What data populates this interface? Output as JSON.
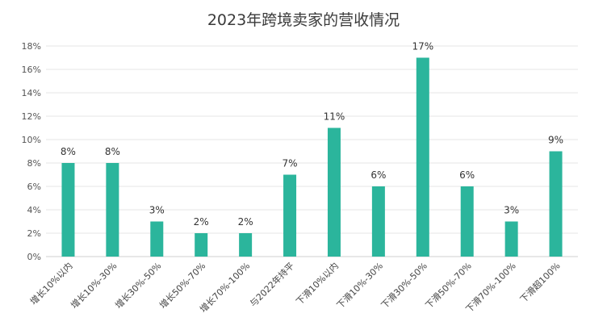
{
  "chart_data": {
    "type": "bar",
    "title": "2023年跨境卖家的营收情况",
    "categories": [
      "增长10%以内",
      "增长10%-30%",
      "增长30%-50%",
      "增长50%-70%",
      "增长70%-100%",
      "与2022年持平",
      "下滑10%以内",
      "下滑10%-30%",
      "下滑30%-50%",
      "下滑50%-70%",
      "下滑70%-100%",
      "下滑超100%"
    ],
    "values": [
      8,
      8,
      3,
      2,
      2,
      7,
      11,
      6,
      17,
      6,
      3,
      9
    ],
    "data_labels": [
      "8%",
      "8%",
      "3%",
      "2%",
      "2%",
      "7%",
      "11%",
      "6%",
      "17%",
      "6%",
      "3%",
      "9%"
    ],
    "yticks": [
      "0%",
      "2%",
      "4%",
      "6%",
      "8%",
      "10%",
      "12%",
      "14%",
      "16%",
      "18%"
    ],
    "ylim": [
      0,
      18
    ],
    "xlabel": "",
    "ylabel": "",
    "grid": true,
    "bar_color": "#2bb59c"
  }
}
